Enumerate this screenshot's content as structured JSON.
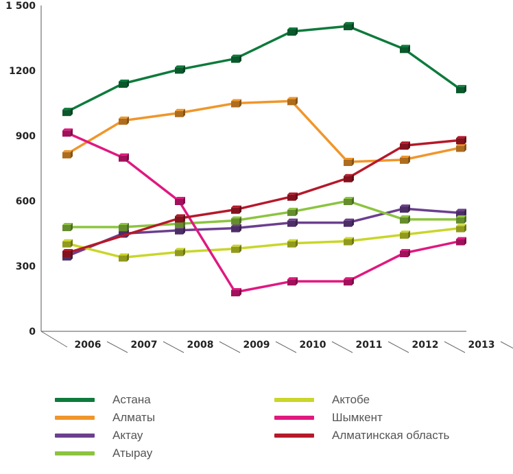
{
  "chart_data": {
    "type": "line",
    "categories": [
      "2006",
      "2007",
      "2008",
      "2009",
      "2010",
      "2011",
      "2012",
      "2013"
    ],
    "y_ticks": [
      "0",
      "300",
      "600",
      "900",
      "1200",
      "1 500"
    ],
    "ylim": [
      0,
      1500
    ],
    "grid": false,
    "legend_position": "bottom",
    "series": [
      {
        "name": "Астана",
        "color": "#0e7a3c",
        "values": [
          1010,
          1140,
          1205,
          1255,
          1380,
          1405,
          1300,
          1115
        ]
      },
      {
        "name": "Алматы",
        "color": "#f0962a",
        "values": [
          815,
          970,
          1005,
          1050,
          1060,
          780,
          790,
          845
        ]
      },
      {
        "name": "Актау",
        "color": "#6b3f8e",
        "values": [
          345,
          450,
          465,
          475,
          500,
          500,
          565,
          545
        ]
      },
      {
        "name": "Атырау",
        "color": "#8cc43f",
        "values": [
          480,
          480,
          495,
          510,
          550,
          600,
          515,
          515
        ]
      },
      {
        "name": "Актобе",
        "color": "#c9d62a",
        "values": [
          405,
          340,
          365,
          380,
          405,
          415,
          445,
          475
        ]
      },
      {
        "name": "Шымкент",
        "color": "#e0187f",
        "values": [
          915,
          800,
          600,
          180,
          230,
          230,
          360,
          415
        ]
      },
      {
        "name": "Алматинская область",
        "color": "#b5192a",
        "values": [
          360,
          null,
          520,
          560,
          620,
          705,
          855,
          880
        ]
      }
    ]
  }
}
